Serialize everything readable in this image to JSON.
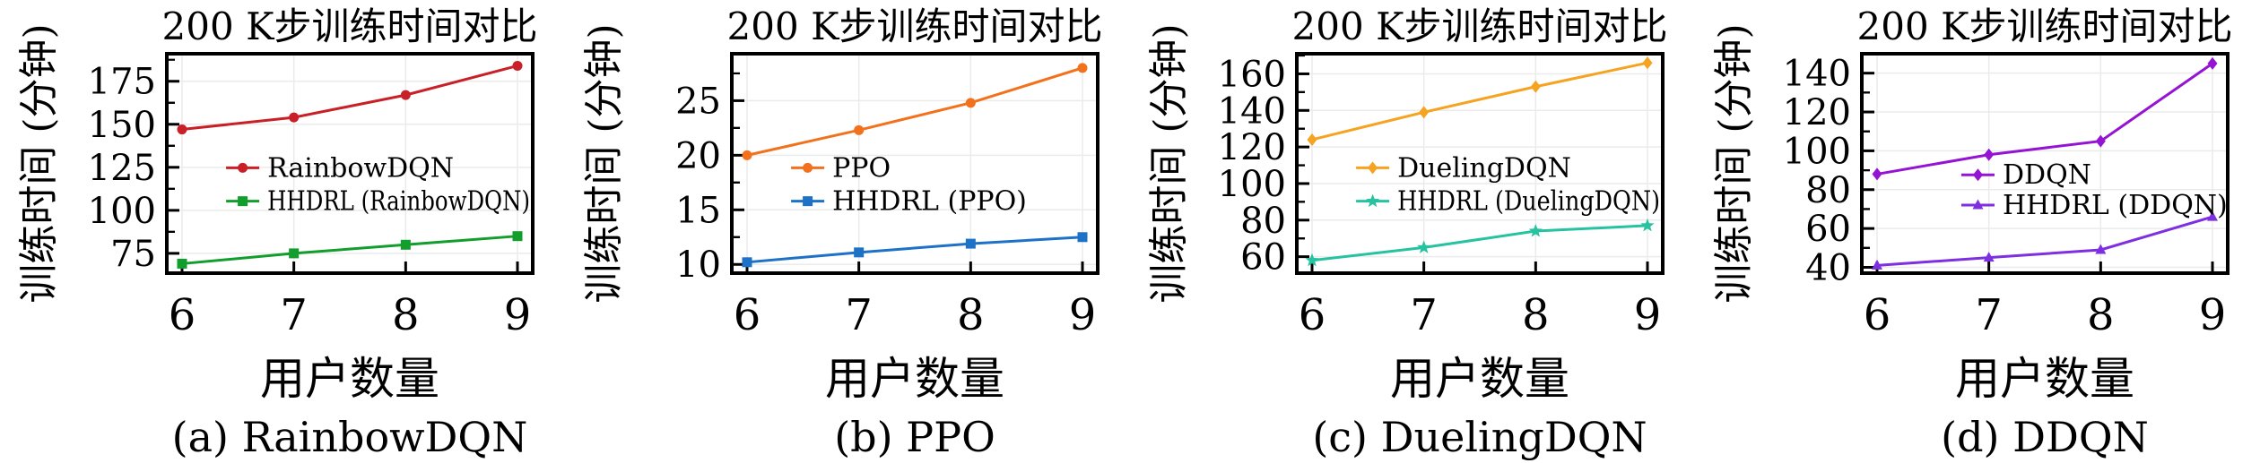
{
  "figure_title": "200 K步训练时间对比",
  "chart_data": [
    {
      "type": "line",
      "panel": "a",
      "title": "200 K步训练时间对比",
      "caption": "(a) RainbowDQN",
      "xlabel": "用户数量",
      "ylabel": "训练时间 (分钟)",
      "x": [
        6,
        7,
        8,
        9
      ],
      "xticks": [
        6,
        7,
        8,
        9
      ],
      "xlim": [
        6,
        9
      ],
      "ylim": [
        63.5,
        191
      ],
      "yticks": [
        75,
        100,
        125,
        150,
        175
      ],
      "grid": true,
      "legend_position": "inside-left",
      "legend_hint": {
        "x_frac": 0.162,
        "rows_frac": [
          0.52,
          0.672
        ]
      },
      "series": [
        {
          "name": "RainbowDQN",
          "color": "#c92027",
          "marker": "circle",
          "values": [
            147,
            154,
            167,
            184
          ]
        },
        {
          "name": "HHDRL (RainbowDQN)",
          "color": "#129e2c",
          "marker": "square",
          "values": [
            69,
            75,
            80,
            85
          ]
        }
      ]
    },
    {
      "type": "line",
      "panel": "b",
      "title": "200 K步训练时间对比",
      "caption": "(b) PPO",
      "xlabel": "用户数量",
      "ylabel": "训练时间 (分钟)",
      "x": [
        6,
        7,
        8,
        9
      ],
      "xticks": [
        6,
        7,
        8,
        9
      ],
      "xlim": [
        6,
        9
      ],
      "ylim": [
        9.2,
        29.3
      ],
      "yticks": [
        10,
        15,
        20,
        25
      ],
      "grid": true,
      "legend_position": "inside-left",
      "legend_hint": {
        "x_frac": 0.162,
        "rows_frac": [
          0.52,
          0.672
        ]
      },
      "series": [
        {
          "name": "PPO",
          "color": "#f2711d",
          "marker": "circle",
          "values": [
            20,
            22.3,
            24.8,
            28
          ]
        },
        {
          "name": "HHDRL (PPO)",
          "color": "#1d72c8",
          "marker": "square",
          "values": [
            10.2,
            11.1,
            11.9,
            12.5
          ]
        }
      ]
    },
    {
      "type": "line",
      "panel": "c",
      "title": "200 K步训练时间对比",
      "caption": "(c) DuelingDQN",
      "xlabel": "用户数量",
      "ylabel": "训练时间 (分钟)",
      "x": [
        6,
        7,
        8,
        9
      ],
      "xticks": [
        6,
        7,
        8,
        9
      ],
      "xlim": [
        6,
        9
      ],
      "ylim": [
        51,
        171
      ],
      "yticks": [
        60,
        80,
        100,
        120,
        140,
        160
      ],
      "grid": true,
      "legend_position": "inside-left",
      "legend_hint": {
        "x_frac": 0.162,
        "rows_frac": [
          0.52,
          0.672
        ]
      },
      "series": [
        {
          "name": "DuelingDQN",
          "color": "#f5a321",
          "marker": "diamond",
          "values": [
            124,
            139,
            153,
            166
          ]
        },
        {
          "name": "HHDRL (DuelingDQN)",
          "color": "#27c2a0",
          "marker": "star",
          "values": [
            58,
            65,
            74,
            77
          ]
        }
      ]
    },
    {
      "type": "line",
      "panel": "d",
      "title": "200 K步训练时间对比",
      "caption": "(d) DDQN",
      "xlabel": "用户数量",
      "ylabel": "训练时间 (分钟)",
      "x": [
        6,
        7,
        8,
        9
      ],
      "xticks": [
        6,
        7,
        8,
        9
      ],
      "xlim": [
        6,
        9
      ],
      "ylim": [
        37,
        150
      ],
      "yticks": [
        40,
        60,
        80,
        100,
        120,
        140
      ],
      "grid": true,
      "legend_position": "inside-center",
      "legend_hint": {
        "x_frac": 0.272,
        "rows_frac": [
          0.552,
          0.69
        ]
      },
      "series": [
        {
          "name": "DDQN",
          "color": "#9513d2",
          "marker": "diamond",
          "values": [
            88,
            98,
            105,
            145
          ]
        },
        {
          "name": "HHDRL (DDQN)",
          "color": "#7e2fe0",
          "marker": "triangle",
          "values": [
            41,
            45,
            49,
            66
          ]
        }
      ]
    }
  ],
  "style": {
    "grid_color": "#ebebeb",
    "axis_color": "#000000",
    "text_color": "#000000",
    "background": "#ffffff"
  }
}
